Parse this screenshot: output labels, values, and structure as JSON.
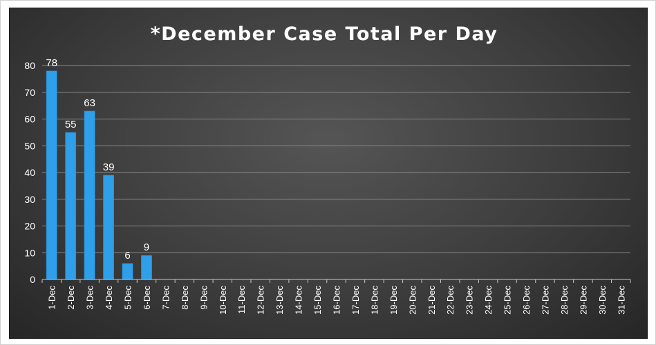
{
  "chart_data": {
    "type": "bar",
    "title": "*December Case Total Per Day",
    "xlabel": "",
    "ylabel": "",
    "ylim": [
      0,
      80
    ],
    "yticks": [
      0,
      10,
      20,
      30,
      40,
      50,
      60,
      70,
      80
    ],
    "grid": true,
    "legend": "none",
    "categories": [
      "1-Dec",
      "2-Dec",
      "3-Dec",
      "4-Dec",
      "5-Dec",
      "6-Dec",
      "7-Dec",
      "8-Dec",
      "9-Dec",
      "10-Dec",
      "11-Dec",
      "12-Dec",
      "13-Dec",
      "14-Dec",
      "15-Dec",
      "16-Dec",
      "17-Dec",
      "18-Dec",
      "19-Dec",
      "20-Dec",
      "21-Dec",
      "22-Dec",
      "23-Dec",
      "24-Dec",
      "25-Dec",
      "26-Dec",
      "27-Dec",
      "28-Dec",
      "29-Dec",
      "30-Dec",
      "31-Dec"
    ],
    "values": [
      78,
      55,
      63,
      39,
      6,
      9,
      null,
      null,
      null,
      null,
      null,
      null,
      null,
      null,
      null,
      null,
      null,
      null,
      null,
      null,
      null,
      null,
      null,
      null,
      null,
      null,
      null,
      null,
      null,
      null,
      null
    ],
    "colors": {
      "bar": "#2e9fe8",
      "bar_edge": "#1f7fc0",
      "grid": "#8a8a8a",
      "axis": "#c8c8c8",
      "text": "#ffffff"
    }
  }
}
